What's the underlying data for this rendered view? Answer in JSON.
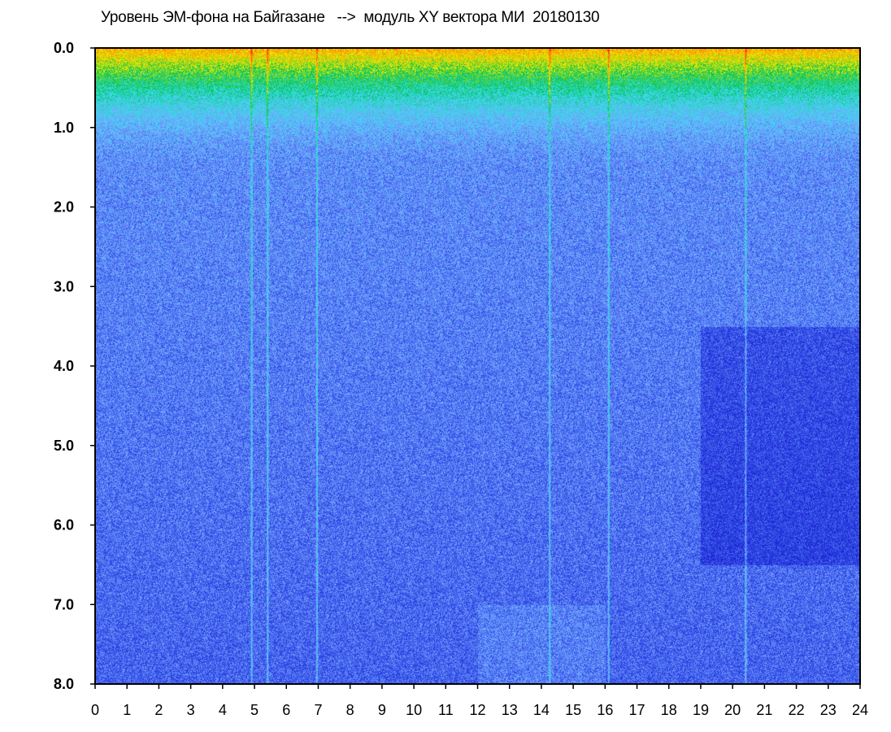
{
  "title": "Уровень ЭМ-фона на Байгазане   -->  модуль XY вектора МИ  20180130",
  "chart_data": {
    "type": "heatmap",
    "title": "Уровень ЭМ-фона на Байгазане   -->  модуль XY вектора МИ  20180130",
    "xlabel": "",
    "ylabel": "",
    "x_ticks": [
      "0",
      "1",
      "2",
      "3",
      "4",
      "5",
      "6",
      "7",
      "8",
      "9",
      "10",
      "11",
      "12",
      "13",
      "14",
      "15",
      "16",
      "17",
      "18",
      "19",
      "20",
      "21",
      "22",
      "23",
      "24"
    ],
    "y_ticks": [
      "0.0",
      "1.0",
      "2.0",
      "3.0",
      "4.0",
      "5.0",
      "6.0",
      "7.0",
      "8.0"
    ],
    "xlim": [
      0,
      24
    ],
    "ylim": [
      0,
      8
    ],
    "y_inverted": true,
    "colormap": [
      "#1a1ad0",
      "#2f4fe6",
      "#7aa0ff",
      "#38e0f0",
      "#00c050",
      "#f0f000",
      "#ff9000",
      "#ff2020"
    ],
    "features": {
      "high_intensity_band": [
        0.0,
        1.0
      ],
      "strong_vertical_lines_hours": [
        4.9,
        5.4,
        6.95,
        14.25,
        16.1,
        20.4
      ],
      "dark_region_hours": [
        19,
        24
      ],
      "dark_region_depth": [
        3.5,
        6.5
      ]
    }
  }
}
